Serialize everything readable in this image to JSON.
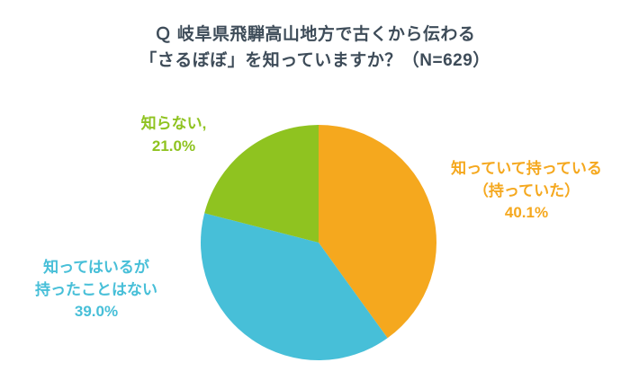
{
  "title": {
    "text": "Ｑ 岐阜県飛騨高山地方で古くから伝わる\n「さるぼぼ」を知っていますか？（N=629）"
  },
  "chart_data": {
    "type": "pie",
    "title": "Ｑ 岐阜県飛騨高山地方で古くから伝わる「さるぼぼ」を知っていますか？（N=629）",
    "sample_size_label": "N=629",
    "start_angle_deg": 0,
    "direction": "clockwise",
    "legend_position": "none",
    "slices": [
      {
        "label": "知っていて持っている（持っていた）",
        "value": 40.1,
        "unit": "%",
        "color": "#F5A81E",
        "display": "知っていて持っている\n（持っていた）\n40.1%"
      },
      {
        "label": "知ってはいるが持ったことはない",
        "value": 39.0,
        "unit": "%",
        "color": "#47BFD8",
        "display": "知ってはいるが\n持ったことはない\n39.0%"
      },
      {
        "label": "知らない",
        "value": 21.0,
        "unit": "%",
        "color": "#8FC320",
        "display": "知らない,\n21.0%"
      }
    ]
  }
}
